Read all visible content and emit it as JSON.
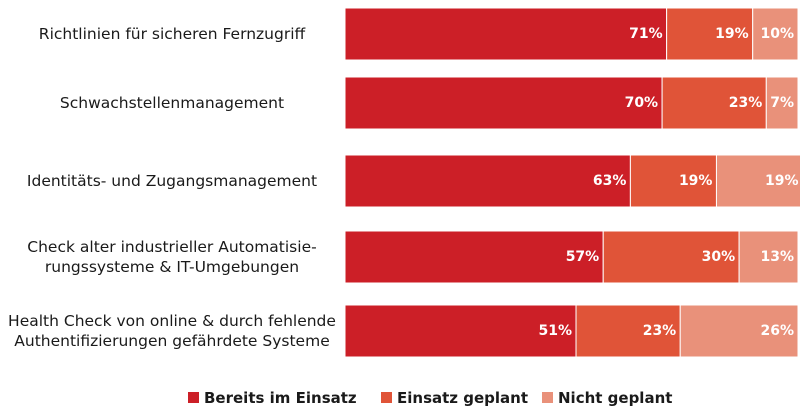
{
  "chart_data": {
    "type": "bar",
    "orientation": "horizontal",
    "stacked": true,
    "unit": "%",
    "categories": [
      [
        "Richtlinien für sicheren Fernzugriff"
      ],
      [
        "Schwachstellenmanagement"
      ],
      [
        "Identitäts- und Zugangsmanagement"
      ],
      [
        "Check alter industrieller Automatisie-",
        "rungssysteme & IT-Umgebungen"
      ],
      [
        "Health Check von online & durch fehlende",
        "Authentifizierungen gefährdete Systeme"
      ]
    ],
    "series": [
      {
        "name": "Bereits im Einsatz",
        "color": "#cc1f27",
        "values": [
          71,
          70,
          63,
          57,
          51
        ]
      },
      {
        "name": "Einsatz geplant",
        "color": "#e05438",
        "values": [
          19,
          23,
          19,
          30,
          23
        ]
      },
      {
        "name": "Nicht geplant",
        "color": "#e9917a",
        "values": [
          10,
          7,
          19,
          13,
          26
        ]
      }
    ],
    "xlim": [
      0,
      100
    ],
    "grid": false,
    "legend": "bottom"
  }
}
